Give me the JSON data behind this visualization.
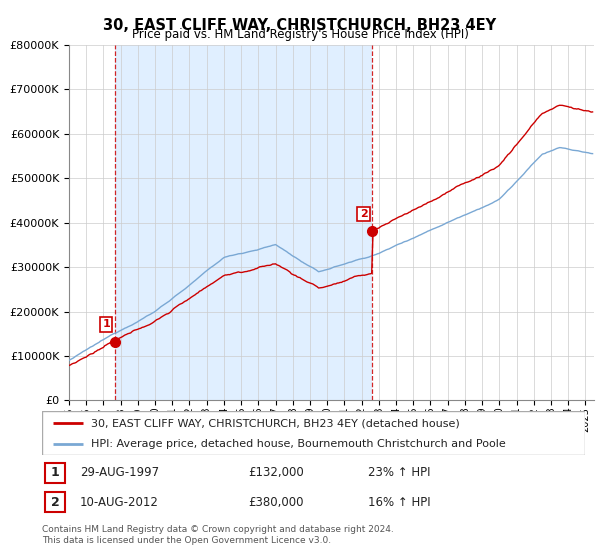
{
  "title": "30, EAST CLIFF WAY, CHRISTCHURCH, BH23 4EY",
  "subtitle": "Price paid vs. HM Land Registry's House Price Index (HPI)",
  "legend_line1": "30, EAST CLIFF WAY, CHRISTCHURCH, BH23 4EY (detached house)",
  "legend_line2": "HPI: Average price, detached house, Bournemouth Christchurch and Poole",
  "footer": "Contains HM Land Registry data © Crown copyright and database right 2024.\nThis data is licensed under the Open Government Licence v3.0.",
  "sale1_date": "29-AUG-1997",
  "sale1_price": "£132,000",
  "sale1_hpi": "23% ↑ HPI",
  "sale2_date": "10-AUG-2012",
  "sale2_price": "£380,000",
  "sale2_hpi": "16% ↑ HPI",
  "sale1_year": 1997.66,
  "sale2_year": 2012.61,
  "sale1_value": 132000,
  "sale2_value": 380000,
  "ylim": [
    0,
    800000
  ],
  "xlim_start": 1995,
  "xlim_end": 2025.5,
  "red_line_color": "#cc0000",
  "blue_line_color": "#7aa8d4",
  "shade_color": "#ddeeff",
  "background_color": "#ffffff",
  "grid_color": "#cccccc",
  "vline_color": "#cc0000"
}
